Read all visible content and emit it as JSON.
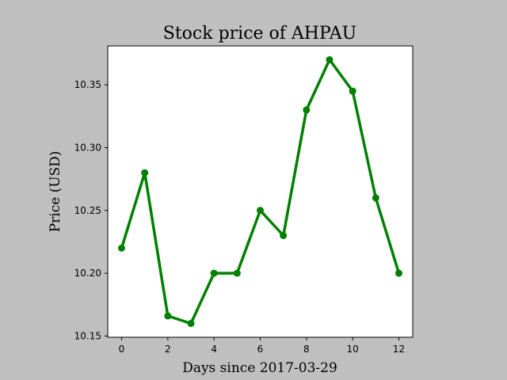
{
  "chart_data": {
    "type": "line",
    "title": "Stock price of AHPAU",
    "xlabel": "Days since 2017-03-29",
    "ylabel": "Price (USD)",
    "xlim": [
      -0.6,
      12.6
    ],
    "ylim": [
      10.149,
      10.381
    ],
    "xticks": [
      0,
      2,
      4,
      6,
      8,
      10,
      12
    ],
    "xtick_labels": [
      "0",
      "2",
      "4",
      "6",
      "8",
      "10",
      "12"
    ],
    "yticks": [
      10.15,
      10.2,
      10.25,
      10.3,
      10.35
    ],
    "ytick_labels": [
      "10.15",
      "10.20",
      "10.25",
      "10.30",
      "10.35"
    ],
    "grid": false,
    "series": [
      {
        "color": "#008000",
        "marker": "circle",
        "x": [
          0,
          1,
          2,
          3,
          4,
          5,
          6,
          7,
          8,
          9,
          10,
          11,
          12
        ],
        "values": [
          10.22,
          10.28,
          10.166,
          10.16,
          10.2,
          10.2,
          10.25,
          10.23,
          10.33,
          10.37,
          10.345,
          10.26,
          10.2
        ]
      }
    ]
  }
}
